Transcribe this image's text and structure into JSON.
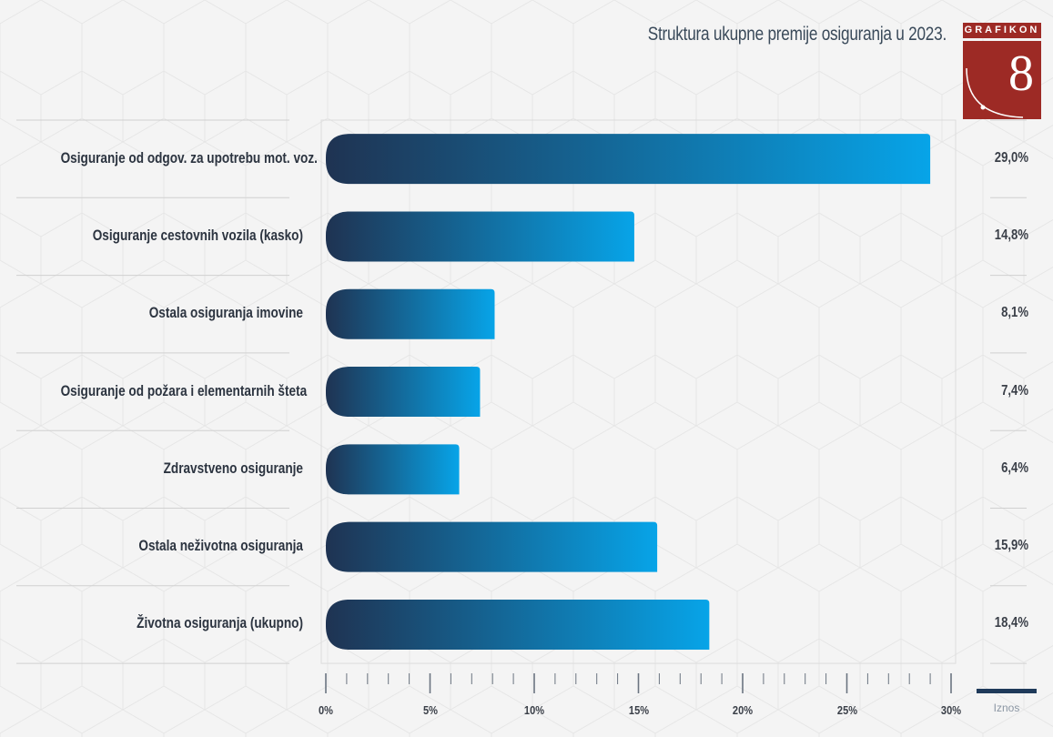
{
  "badge": {
    "label": "GRAFIKON",
    "number": "8"
  },
  "legend": {
    "label": "Iznos",
    "color": "#1f3a5a"
  },
  "colors": {
    "bar_start": "#1f3352",
    "bar_end": "#07a4e8",
    "badge": "#9d2a25"
  },
  "chart_data": {
    "type": "bar",
    "orientation": "horizontal",
    "title": "Struktura ukupne premije osiguranja u 2023.",
    "categories": [
      "Osiguranje od odgov. za upotrebu mot. voz.",
      "Osiguranje cestovnih vozila (kasko)",
      "Ostala osiguranja imovine",
      "Osiguranje od požara i elementarnih šteta",
      "Zdravstveno osiguranje",
      "Ostala neživotna osiguranja",
      "Životna osiguranja (ukupno)"
    ],
    "series": [
      {
        "name": "Iznos",
        "values": [
          29.0,
          14.8,
          8.1,
          7.4,
          6.4,
          15.9,
          18.4
        ]
      }
    ],
    "value_labels": [
      "29,0%",
      "14,8%",
      "8,1%",
      "7,4%",
      "6,4%",
      "15,9%",
      "18,4%"
    ],
    "xlim": [
      0,
      30
    ],
    "x_ticks": [
      0,
      5,
      10,
      15,
      20,
      25,
      30
    ],
    "x_tick_labels": [
      "0%",
      "5%",
      "10%",
      "15%",
      "20%",
      "25%",
      "30%"
    ],
    "legend_position": "bottom-right",
    "grid": false
  }
}
